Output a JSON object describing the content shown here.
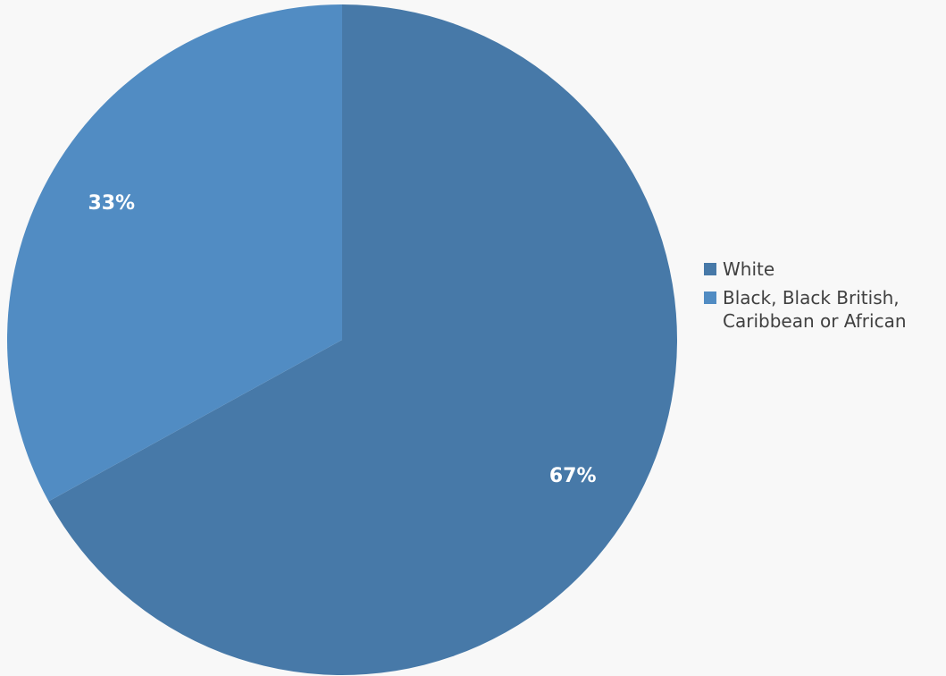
{
  "chart_data": {
    "type": "pie",
    "title": "",
    "start_angle_deg": 0,
    "direction": "clockwise",
    "legend_position": "right",
    "slices": [
      {
        "name": "White",
        "value": 67,
        "label": "67%",
        "color": "#4779a8"
      },
      {
        "name": "Black, Black British, Caribbean or African",
        "value": 33,
        "label": "33%",
        "color": "#518cc3"
      }
    ]
  },
  "legend": {
    "items": [
      {
        "label": "White",
        "color": "#4779a8"
      },
      {
        "label": "Black, Black British, Caribbean or African",
        "color": "#518cc3"
      }
    ]
  },
  "background": "#f8f8f8"
}
